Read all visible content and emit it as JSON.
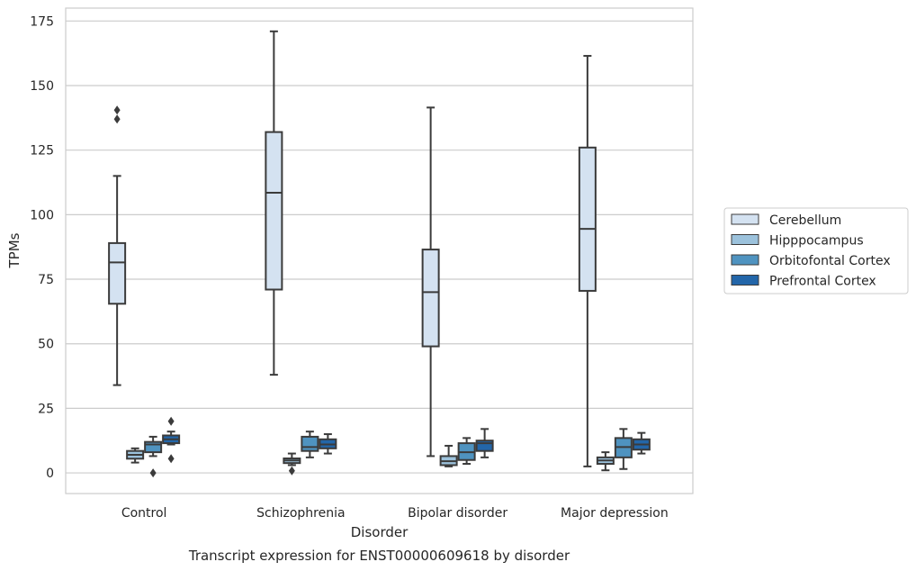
{
  "chart_data": {
    "type": "boxplot",
    "caption": "Transcript expression for ENST00000609618 by disorder",
    "xlabel": "Disorder",
    "ylabel": "TPMs",
    "ylim": [
      -8,
      180
    ],
    "yticks": [
      0,
      25,
      50,
      75,
      100,
      125,
      150,
      175
    ],
    "grid": true,
    "legend_position": "right",
    "categories": [
      "Control",
      "Schizophrenia",
      "Bipolar disorder",
      "Major depression"
    ],
    "series": [
      {
        "name": "Cerebellum",
        "color": "#d4e2f1",
        "boxes": [
          {
            "whislo": 34,
            "q1": 65.5,
            "med": 81.5,
            "q3": 89,
            "whishi": 115,
            "fliers": [
              137,
              140.5
            ]
          },
          {
            "whislo": 38,
            "q1": 71,
            "med": 108.5,
            "q3": 132,
            "whishi": 171,
            "fliers": []
          },
          {
            "whislo": 6.5,
            "q1": 49,
            "med": 70,
            "q3": 86.5,
            "whishi": 141.5,
            "fliers": []
          },
          {
            "whislo": 2.5,
            "q1": 70.5,
            "med": 94.5,
            "q3": 126,
            "whishi": 161.5,
            "fliers": []
          }
        ]
      },
      {
        "name": "Hipppocampus",
        "color": "#9cc2dc",
        "boxes": [
          {
            "whislo": 4,
            "q1": 5.5,
            "med": 7,
            "q3": 8.5,
            "whishi": 9.5,
            "fliers": []
          },
          {
            "whislo": 3,
            "q1": 3.8,
            "med": 4.8,
            "q3": 5.6,
            "whishi": 7.5,
            "fliers": [
              0.8
            ]
          },
          {
            "whislo": 2.5,
            "q1": 3,
            "med": 4.5,
            "q3": 6.5,
            "whishi": 10.5,
            "fliers": []
          },
          {
            "whislo": 1,
            "q1": 3.5,
            "med": 4.8,
            "q3": 6,
            "whishi": 8,
            "fliers": []
          }
        ]
      },
      {
        "name": "Orbitofontal Cortex",
        "color": "#4f93c0",
        "boxes": [
          {
            "whislo": 6.5,
            "q1": 8,
            "med": 11,
            "q3": 12,
            "whishi": 14,
            "fliers": [
              0
            ]
          },
          {
            "whislo": 6,
            "q1": 8.5,
            "med": 10,
            "q3": 14,
            "whishi": 16,
            "fliers": []
          },
          {
            "whislo": 3.5,
            "q1": 5,
            "med": 8,
            "q3": 11.5,
            "whishi": 13.5,
            "fliers": []
          },
          {
            "whislo": 1.5,
            "q1": 6,
            "med": 10,
            "q3": 13.5,
            "whishi": 17,
            "fliers": []
          }
        ]
      },
      {
        "name": "Prefrontal Cortex",
        "color": "#2366a9",
        "boxes": [
          {
            "whislo": 11,
            "q1": 11.5,
            "med": 13,
            "q3": 14.5,
            "whishi": 16,
            "fliers": [
              5.5,
              20
            ]
          },
          {
            "whislo": 7.5,
            "q1": 9.5,
            "med": 11,
            "q3": 13,
            "whishi": 15,
            "fliers": []
          },
          {
            "whislo": 6,
            "q1": 8.5,
            "med": 11.5,
            "q3": 12.5,
            "whishi": 17,
            "fliers": []
          },
          {
            "whislo": 7.5,
            "q1": 9,
            "med": 11,
            "q3": 13,
            "whishi": 15.5,
            "fliers": []
          }
        ]
      }
    ]
  }
}
